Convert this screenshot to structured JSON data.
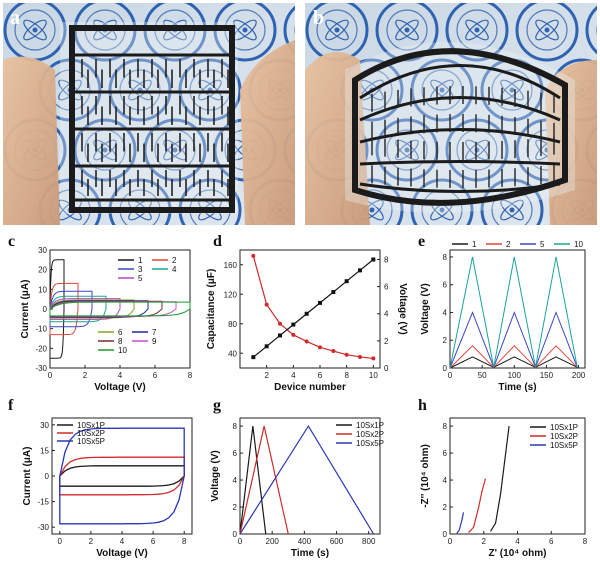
{
  "panel_labels": [
    "a",
    "b",
    "c",
    "d",
    "e",
    "f",
    "g",
    "h"
  ],
  "photo_stamp_text": "…",
  "chart_data": [
    {
      "panel": "c",
      "type": "line",
      "xlabel": "Voltage (V)",
      "ylabel": "Current (μA)",
      "xlim": [
        0,
        8
      ],
      "ylim": [
        -30,
        30
      ],
      "xticks": [
        0,
        2,
        4,
        6,
        8
      ],
      "yticks": [
        -30,
        -20,
        -10,
        0,
        10,
        20,
        30
      ],
      "series": [
        {
          "name": "1",
          "color": "#1a1a1a",
          "vmax": 0.8,
          "i": 25
        },
        {
          "name": "2",
          "color": "#e0443a",
          "vmax": 1.6,
          "i": 13
        },
        {
          "name": "3",
          "color": "#3a46c8",
          "vmax": 2.4,
          "i": 9
        },
        {
          "name": "4",
          "color": "#1aa39a",
          "vmax": 3.2,
          "i": 6.5
        },
        {
          "name": "5",
          "color": "#b048c0",
          "vmax": 4.0,
          "i": 5.3
        },
        {
          "name": "6",
          "color": "#8aa020",
          "vmax": 4.8,
          "i": 4.6
        },
        {
          "name": "7",
          "color": "#1c2aa0",
          "vmax": 5.6,
          "i": 4.2
        },
        {
          "name": "8",
          "color": "#7a2a2a",
          "vmax": 6.4,
          "i": 3.9
        },
        {
          "name": "9",
          "color": "#c050c8",
          "vmax": 7.2,
          "i": 3.7
        },
        {
          "name": "10",
          "color": "#1a9a2a",
          "vmax": 8.0,
          "i": 3.5
        }
      ]
    },
    {
      "panel": "d",
      "type": "line",
      "xlabel": "Device number",
      "ylabel": "Capacitance (μF)",
      "y2label": "Voltage (V)",
      "xlim": [
        0,
        10.5
      ],
      "ylim": [
        20,
        180
      ],
      "y2lim": [
        0,
        8.7
      ],
      "xticks": [
        2,
        4,
        6,
        8,
        10
      ],
      "yticks": [
        40,
        80,
        120,
        160
      ],
      "y2ticks": [
        0,
        2,
        4,
        6,
        8
      ],
      "x": [
        1,
        2,
        3,
        4,
        5,
        6,
        7,
        8,
        9,
        10
      ],
      "capacitance": [
        172,
        106,
        80,
        65,
        56,
        48,
        43,
        38,
        35,
        33
      ],
      "voltage": [
        0.8,
        1.6,
        2.4,
        3.2,
        4.0,
        4.8,
        5.6,
        6.4,
        7.2,
        8.0
      ],
      "capacitance_color": "#d02a2a",
      "voltage_color": "#111111"
    },
    {
      "panel": "e",
      "type": "line",
      "xlabel": "Time (s)",
      "ylabel": "Voltage (V)",
      "xlim": [
        0,
        210
      ],
      "ylim": [
        0,
        8.5
      ],
      "xticks": [
        0,
        50,
        100,
        150,
        200
      ],
      "yticks": [
        0,
        2,
        4,
        6,
        8
      ],
      "period": 65,
      "series": [
        {
          "name": "1",
          "color": "#1a1a1a",
          "vmax": 0.8
        },
        {
          "name": "2",
          "color": "#e0443a",
          "vmax": 1.6
        },
        {
          "name": "5",
          "color": "#3a46c8",
          "vmax": 4.0
        },
        {
          "name": "10",
          "color": "#1aa39a",
          "vmax": 8.0
        }
      ]
    },
    {
      "panel": "f",
      "type": "line",
      "xlabel": "Voltage (V)",
      "ylabel": "Current (μA)",
      "xlim": [
        -0.5,
        8.5
      ],
      "ylim": [
        -34,
        34
      ],
      "xticks": [
        0,
        2,
        4,
        6,
        8
      ],
      "yticks": [
        -30,
        -15,
        0,
        15,
        30
      ],
      "series": [
        {
          "name": "10Sx1P",
          "color": "#1a1a1a",
          "vmax": 8.0,
          "i": 6
        },
        {
          "name": "10Sx2P",
          "color": "#d02a2a",
          "vmax": 8.0,
          "i": 11
        },
        {
          "name": "10Sx5P",
          "color": "#2a36b8",
          "vmax": 8.0,
          "i": 28
        }
      ]
    },
    {
      "panel": "g",
      "type": "line",
      "xlabel": "Time (s)",
      "ylabel": "Voltage (V)",
      "xlim": [
        0,
        870
      ],
      "ylim": [
        0,
        8.6
      ],
      "xticks": [
        0,
        200,
        400,
        600,
        800
      ],
      "yticks": [
        0,
        2,
        4,
        6,
        8
      ],
      "series": [
        {
          "name": "10Sx1P",
          "color": "#1a1a1a",
          "x": [
            0,
            80,
            160
          ],
          "y": [
            0,
            8,
            0
          ]
        },
        {
          "name": "10Sx2P",
          "color": "#d02a2a",
          "x": [
            0,
            150,
            300
          ],
          "y": [
            0,
            8,
            0
          ]
        },
        {
          "name": "10Sx5P",
          "color": "#2a36b8",
          "x": [
            0,
            425,
            830
          ],
          "y": [
            0,
            8,
            0
          ]
        }
      ]
    },
    {
      "panel": "h",
      "type": "line",
      "xlabel": "Z' (10⁴ ohm)",
      "ylabel": "-Z'' (10⁴ ohm)",
      "xlim": [
        0,
        8
      ],
      "ylim": [
        0,
        8.6
      ],
      "xticks": [
        0,
        2,
        4,
        6,
        8
      ],
      "yticks": [
        0,
        2,
        4,
        6,
        8
      ],
      "series": [
        {
          "name": "10Sx1P",
          "color": "#1a1a1a",
          "x": [
            2.4,
            2.7,
            3.0,
            3.3,
            3.5
          ],
          "y": [
            0.2,
            0.8,
            3.0,
            6.0,
            8.0
          ]
        },
        {
          "name": "10Sx2P",
          "color": "#d02a2a",
          "x": [
            1.1,
            1.4,
            1.7,
            1.9,
            2.1
          ],
          "y": [
            0.1,
            0.5,
            2.0,
            3.2,
            4.1
          ]
        },
        {
          "name": "10Sx5P",
          "color": "#2a36b8",
          "x": [
            0.4,
            0.55,
            0.7,
            0.8
          ],
          "y": [
            0.05,
            0.3,
            1.0,
            1.6
          ]
        }
      ]
    }
  ]
}
